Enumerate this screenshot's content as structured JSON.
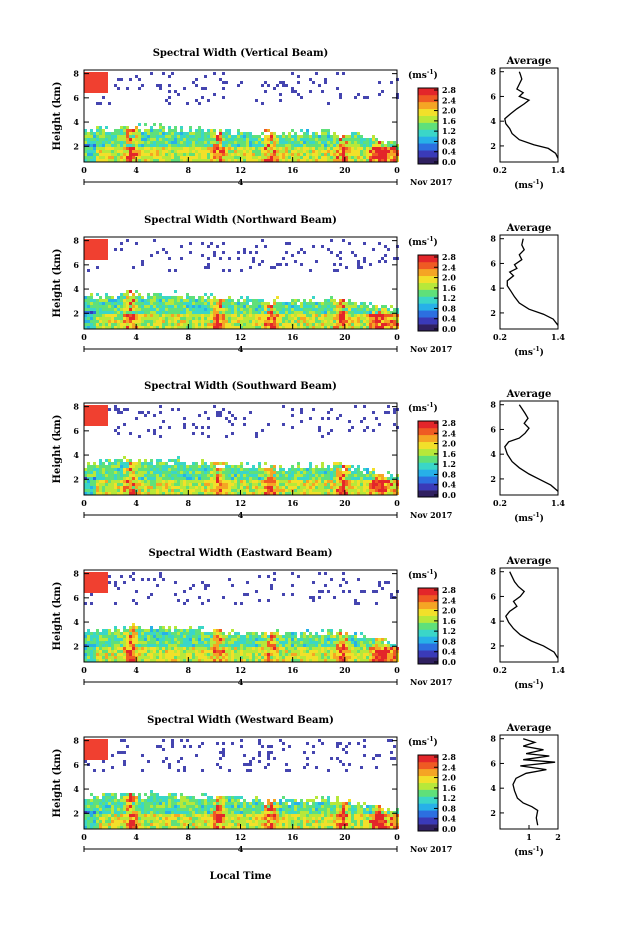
{
  "chart_data": {
    "type": "heatmap",
    "xlabel": "Local Time",
    "date_label": "Nov 2017",
    "day_label": "4",
    "unit_label": "(ms",
    "unit_exp": "-1",
    "unit_close": ")",
    "avg_title": "Average",
    "panels": [
      {
        "title": "Spectral Width (Vertical Beam)",
        "ylabel": "Height (km)",
        "x_ticks": [
          "0",
          "4",
          "8",
          "12",
          "16",
          "20",
          "0"
        ],
        "y_ticks": [
          "2",
          "4",
          "6",
          "8"
        ],
        "colorbar_ticks": [
          "0.0",
          "0.4",
          "0.8",
          "1.2",
          "1.6",
          "2.0",
          "2.4",
          "2.8"
        ],
        "avg_x_ticks": [
          "0.2",
          "1.4"
        ],
        "avg_x_range": [
          0.2,
          1.4
        ],
        "avg_y_ticks": [
          "2",
          "4",
          "6",
          "8"
        ],
        "avg_profile": [
          [
            1.4,
            1.0
          ],
          [
            1.35,
            1.4
          ],
          [
            1.2,
            1.8
          ],
          [
            0.9,
            2.1
          ],
          [
            0.6,
            2.5
          ],
          [
            0.45,
            3.0
          ],
          [
            0.4,
            3.4
          ],
          [
            0.32,
            3.8
          ],
          [
            0.3,
            4.2
          ],
          [
            0.42,
            4.6
          ],
          [
            0.55,
            5.0
          ],
          [
            0.7,
            5.4
          ],
          [
            0.8,
            5.7
          ],
          [
            0.6,
            6.0
          ],
          [
            0.68,
            6.3
          ],
          [
            0.55,
            6.6
          ],
          [
            0.6,
            7.0
          ],
          [
            0.65,
            7.4
          ],
          [
            0.62,
            7.8
          ],
          [
            0.6,
            8.0
          ]
        ]
      },
      {
        "title": "Spectral Width (Northward Beam)",
        "ylabel": "Height (km)",
        "x_ticks": [
          "0",
          "4",
          "8",
          "12",
          "16",
          "20",
          "0"
        ],
        "y_ticks": [
          "2",
          "4",
          "6",
          "8"
        ],
        "colorbar_ticks": [
          "0.0",
          "0.4",
          "0.8",
          "1.2",
          "1.6",
          "2.0",
          "2.4",
          "2.8"
        ],
        "avg_x_ticks": [
          "0.2",
          "1.4"
        ],
        "avg_x_range": [
          0.2,
          1.4
        ],
        "avg_y_ticks": [
          "2",
          "4",
          "6",
          "8"
        ],
        "avg_profile": [
          [
            1.4,
            1.0
          ],
          [
            1.3,
            1.5
          ],
          [
            1.1,
            1.9
          ],
          [
            0.8,
            2.3
          ],
          [
            0.6,
            2.8
          ],
          [
            0.5,
            3.3
          ],
          [
            0.42,
            3.8
          ],
          [
            0.35,
            4.2
          ],
          [
            0.35,
            4.6
          ],
          [
            0.48,
            5.0
          ],
          [
            0.4,
            5.3
          ],
          [
            0.55,
            5.6
          ],
          [
            0.5,
            5.9
          ],
          [
            0.65,
            6.3
          ],
          [
            0.6,
            6.7
          ],
          [
            0.7,
            7.1
          ],
          [
            0.65,
            7.5
          ],
          [
            0.68,
            8.0
          ]
        ]
      },
      {
        "title": "Spectral Width (Southward Beam)",
        "ylabel": "Height (km)",
        "x_ticks": [
          "0",
          "4",
          "8",
          "12",
          "16",
          "20",
          "0"
        ],
        "y_ticks": [
          "2",
          "4",
          "6",
          "8"
        ],
        "colorbar_ticks": [
          "0.0",
          "0.4",
          "0.8",
          "1.2",
          "1.6",
          "2.0",
          "2.4",
          "2.8"
        ],
        "avg_x_ticks": [
          "0.2",
          "1.4"
        ],
        "avg_x_range": [
          0.2,
          1.4
        ],
        "avg_y_ticks": [
          "2",
          "4",
          "6",
          "8"
        ],
        "avg_profile": [
          [
            1.4,
            1.0
          ],
          [
            1.25,
            1.5
          ],
          [
            1.0,
            2.0
          ],
          [
            0.8,
            2.4
          ],
          [
            0.6,
            2.9
          ],
          [
            0.45,
            3.4
          ],
          [
            0.35,
            4.0
          ],
          [
            0.3,
            4.6
          ],
          [
            0.38,
            5.0
          ],
          [
            0.6,
            5.3
          ],
          [
            0.72,
            5.7
          ],
          [
            0.8,
            6.1
          ],
          [
            0.7,
            6.5
          ],
          [
            0.78,
            6.9
          ],
          [
            0.72,
            7.3
          ],
          [
            0.65,
            7.7
          ],
          [
            0.6,
            8.0
          ]
        ]
      },
      {
        "title": "Spectral Width (Eastward Beam)",
        "ylabel": "Height (km)",
        "x_ticks": [
          "0",
          "4",
          "8",
          "12",
          "16",
          "20",
          "0"
        ],
        "y_ticks": [
          "2",
          "4",
          "6",
          "8"
        ],
        "colorbar_ticks": [
          "0.0",
          "0.4",
          "0.8",
          "1.2",
          "1.6",
          "2.0",
          "2.4",
          "2.8"
        ],
        "avg_x_ticks": [
          "0.2",
          "1.4"
        ],
        "avg_x_range": [
          0.2,
          1.4
        ],
        "avg_y_ticks": [
          "2",
          "4",
          "6",
          "8"
        ],
        "avg_profile": [
          [
            1.4,
            1.0
          ],
          [
            1.32,
            1.5
          ],
          [
            1.1,
            2.0
          ],
          [
            0.85,
            2.4
          ],
          [
            0.62,
            2.9
          ],
          [
            0.48,
            3.4
          ],
          [
            0.38,
            3.9
          ],
          [
            0.32,
            4.4
          ],
          [
            0.4,
            4.8
          ],
          [
            0.55,
            5.2
          ],
          [
            0.48,
            5.6
          ],
          [
            0.62,
            6.0
          ],
          [
            0.7,
            6.4
          ],
          [
            0.58,
            6.8
          ],
          [
            0.5,
            7.2
          ],
          [
            0.45,
            7.6
          ],
          [
            0.4,
            8.0
          ]
        ]
      },
      {
        "title": "Spectral Width (Westward Beam)",
        "ylabel": "Height (km)",
        "x_ticks": [
          "0",
          "4",
          "8",
          "12",
          "16",
          "20",
          "0"
        ],
        "y_ticks": [
          "2",
          "4",
          "6",
          "8"
        ],
        "colorbar_ticks": [
          "0.0",
          "0.4",
          "0.8",
          "1.2",
          "1.6",
          "2.0",
          "2.4",
          "2.8"
        ],
        "avg_x_ticks": [
          "1",
          "2"
        ],
        "avg_x_range": [
          0,
          2
        ],
        "avg_y_ticks": [
          "2",
          "4",
          "6",
          "8"
        ],
        "avg_profile": [
          [
            1.3,
            1.0
          ],
          [
            1.25,
            1.6
          ],
          [
            1.3,
            2.2
          ],
          [
            1.1,
            2.5
          ],
          [
            0.8,
            2.8
          ],
          [
            0.6,
            3.2
          ],
          [
            0.5,
            3.8
          ],
          [
            0.45,
            4.3
          ],
          [
            0.55,
            4.8
          ],
          [
            0.9,
            5.2
          ],
          [
            1.6,
            5.5
          ],
          [
            0.7,
            5.8
          ],
          [
            1.9,
            6.1
          ],
          [
            0.8,
            6.3
          ],
          [
            1.7,
            6.6
          ],
          [
            0.9,
            6.8
          ],
          [
            1.5,
            7.1
          ],
          [
            0.8,
            7.4
          ],
          [
            1.2,
            7.7
          ],
          [
            0.8,
            8.0
          ]
        ]
      }
    ]
  },
  "colors": {
    "colormap": [
      "#302060",
      "#3a3ab8",
      "#2c6fe0",
      "#27b0e8",
      "#3ad6c8",
      "#5fe07a",
      "#b7e83a",
      "#f2e02a",
      "#f5a524",
      "#ef5a23",
      "#e3262a"
    ],
    "sparse_layer": "#4545b0",
    "aloft_layer": "#f04030"
  }
}
